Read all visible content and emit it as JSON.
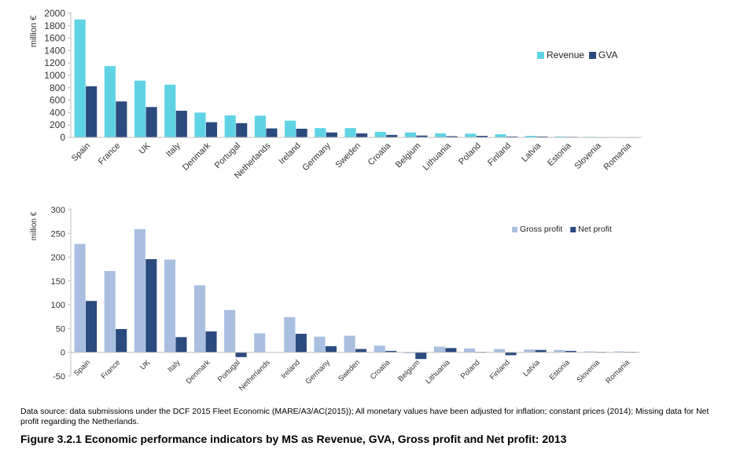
{
  "chart_data": [
    {
      "type": "bar",
      "ylabel": "million €",
      "ylim": [
        0,
        2000
      ],
      "yticks": [
        0,
        200,
        400,
        600,
        800,
        1000,
        1200,
        1400,
        1600,
        1800,
        2000
      ],
      "legend_position": "top-right",
      "grid": false,
      "categories": [
        "Spain",
        "France",
        "UK",
        "Italy",
        "Denmark",
        "Portugal",
        "Netherlands",
        "Ireland",
        "Germany",
        "Sweden",
        "Croatia",
        "Belgium",
        "Lithuania",
        "Poland",
        "Finland",
        "Latvia",
        "Estonia",
        "Slovenia",
        "Romania"
      ],
      "series": [
        {
          "name": "Revenue",
          "color": "#5ed3e3",
          "values": [
            1900,
            1150,
            915,
            850,
            400,
            355,
            350,
            270,
            150,
            150,
            90,
            80,
            65,
            60,
            50,
            25,
            15,
            10,
            5
          ]
        },
        {
          "name": "GVA",
          "color": "#2b4a7e",
          "values": [
            825,
            580,
            490,
            430,
            245,
            230,
            145,
            140,
            80,
            65,
            40,
            30,
            20,
            25,
            15,
            15,
            10,
            5,
            5
          ]
        }
      ]
    },
    {
      "type": "bar",
      "ylabel": "million €",
      "ylim": [
        -50,
        300
      ],
      "yticks": [
        -50,
        0,
        50,
        100,
        150,
        200,
        250,
        300
      ],
      "legend_position": "top-right",
      "grid": false,
      "categories": [
        "Spain",
        "France",
        "UK",
        "Italy",
        "Denmark",
        "Portugal",
        "Netherlands",
        "Ireland",
        "Germany",
        "Sweden",
        "Croatia",
        "Belgium",
        "Lithuania",
        "Poland",
        "Finland",
        "Latvia",
        "Estonia",
        "Slovenia",
        "Romania"
      ],
      "series": [
        {
          "name": "Gross profit",
          "color": "#a8bfe0",
          "values": [
            228,
            171,
            259,
            195,
            141,
            89,
            40,
            74,
            33,
            35,
            14,
            -2,
            12,
            8,
            7,
            6,
            5,
            2,
            2
          ]
        },
        {
          "name": "Net profit",
          "color": "#2b4a7e",
          "values": [
            108,
            49,
            196,
            32,
            44,
            -10,
            null,
            39,
            13,
            7,
            3,
            -14,
            9,
            1,
            -6,
            5,
            3,
            1,
            1
          ]
        }
      ]
    }
  ],
  "source_note": "Data source: data submissions under the DCF 2015 Fleet Economic (MARE/A3/AC(2015)); All monetary values have been adjusted for inflation; constant prices (2014); Missing data for Net profit regarding the Netherlands.",
  "caption": "Figure 3.2.1 Economic performance indicators by MS as Revenue, GVA, Gross profit and Net profit: 2013"
}
